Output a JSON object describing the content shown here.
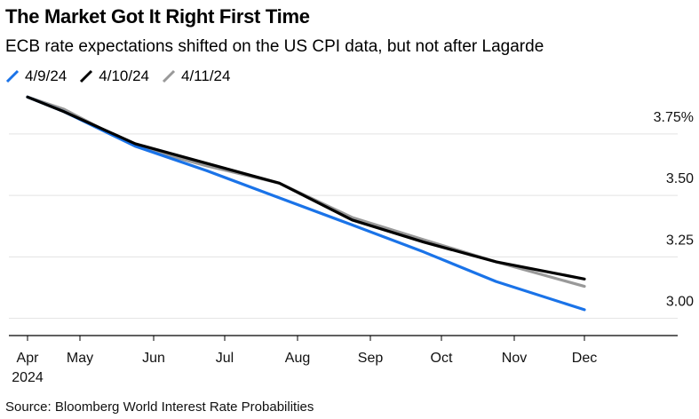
{
  "title": "The Market Got It Right First Time",
  "subtitle": "ECB rate expectations shifted on the US CPI data, but not after Lagarde",
  "source": "Source: Bloomberg World Interest Rate Probabilities",
  "chart_data": {
    "type": "line",
    "x": [
      "Apr",
      "May",
      "Jun",
      "Jul",
      "Aug",
      "Sep",
      "Oct",
      "Nov",
      "Dec"
    ],
    "x_tick_labels": [
      "Apr",
      "May",
      "Jun",
      "Jul",
      "Aug",
      "Sep",
      "Oct",
      "Nov",
      "Dec"
    ],
    "x_year_label": "2024",
    "y_tick_labels": [
      "3.75%",
      "3.50",
      "3.25",
      "3.00"
    ],
    "y_ticks": [
      3.75,
      3.5,
      3.25,
      3.0
    ],
    "ylim": [
      2.93,
      3.93
    ],
    "grid": true,
    "legend_position": "top-left",
    "series": [
      {
        "name": "4/9/24",
        "color": "#1a73e8",
        "points": [
          {
            "x": 0,
            "y": 3.9
          },
          {
            "x": 0.7,
            "y": 3.84
          },
          {
            "x": 1.75,
            "y": 3.7
          },
          {
            "x": 2.75,
            "y": 3.6
          },
          {
            "x": 3.75,
            "y": 3.49
          },
          {
            "x": 4.75,
            "y": 3.38
          },
          {
            "x": 5.75,
            "y": 3.27
          },
          {
            "x": 6.75,
            "y": 3.15
          },
          {
            "x": 8.0,
            "y": 3.035
          }
        ]
      },
      {
        "name": "4/10/24",
        "color": "#000000",
        "points": [
          {
            "x": 0,
            "y": 3.9
          },
          {
            "x": 0.7,
            "y": 3.84
          },
          {
            "x": 1.75,
            "y": 3.71
          },
          {
            "x": 2.75,
            "y": 3.63
          },
          {
            "x": 3.75,
            "y": 3.55
          },
          {
            "x": 4.75,
            "y": 3.4
          },
          {
            "x": 5.75,
            "y": 3.31
          },
          {
            "x": 6.75,
            "y": 3.23
          },
          {
            "x": 8.0,
            "y": 3.16
          }
        ]
      },
      {
        "name": "4/11/24",
        "color": "#999999",
        "points": [
          {
            "x": 0,
            "y": 3.9
          },
          {
            "x": 0.7,
            "y": 3.85
          },
          {
            "x": 1.75,
            "y": 3.7
          },
          {
            "x": 2.75,
            "y": 3.62
          },
          {
            "x": 3.75,
            "y": 3.55
          },
          {
            "x": 4.75,
            "y": 3.41
          },
          {
            "x": 5.75,
            "y": 3.32
          },
          {
            "x": 6.75,
            "y": 3.23
          },
          {
            "x": 8.0,
            "y": 3.13
          }
        ]
      }
    ]
  }
}
